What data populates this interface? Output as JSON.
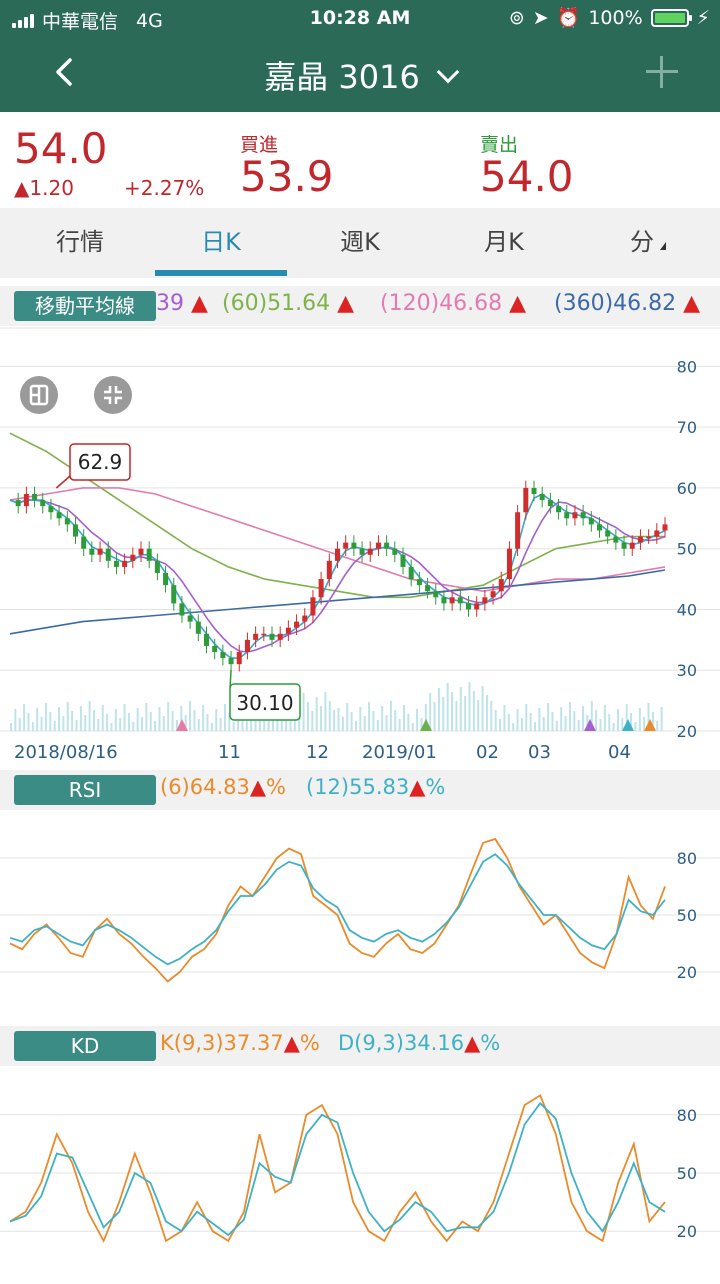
{
  "status": {
    "carrier": "中華電信",
    "network": "4G",
    "time": "10:28 AM",
    "battery": "100%"
  },
  "header": {
    "title": "嘉晶 3016"
  },
  "quote": {
    "price": "54.0",
    "change": "▲1.20",
    "change_pct": "+2.27%",
    "bid_label": "買進",
    "bid": "53.9",
    "ask_label": "賣出",
    "ask": "54.0"
  },
  "tabs": [
    "行情",
    "日K",
    "週K",
    "月K",
    "分"
  ],
  "ma_bar": {
    "label": "移動平均線",
    "items": [
      "39",
      "(60)51.64",
      "(120)46.68",
      "(360)46.82"
    ]
  },
  "rsi_bar": {
    "label": "RSI",
    "items": [
      "(6)64.83",
      "(12)55.83"
    ],
    "unit": "%"
  },
  "kd_bar": {
    "label": "KD",
    "items": [
      "K(9,3)37.37",
      "D(9,3)34.16"
    ],
    "unit": "%"
  },
  "colors": {
    "up": "#d22d2d",
    "down": "#2e9b3a",
    "ma5": "#3aa6c9",
    "ma20": "#a45fd0",
    "ma60": "#7fb24a",
    "ma120": "#e27bb0",
    "ma360": "#3c6aa8",
    "orange": "#e98b2a",
    "teal": "#3fb1c6"
  },
  "chart_data": [
    {
      "type": "candlestick",
      "y_ticks": [
        20,
        30,
        40,
        50,
        60,
        70,
        80
      ],
      "ylim": [
        20,
        85
      ],
      "x_labels": [
        "2018/08/16",
        "11",
        "12",
        "2019/01",
        "02",
        "03",
        "04"
      ],
      "annotations": [
        {
          "label": "62.9",
          "kind": "high"
        },
        {
          "label": "30.10",
          "kind": "low"
        }
      ],
      "close_path": [
        58,
        57,
        59,
        58,
        57,
        56,
        55,
        54,
        52,
        50,
        49,
        50,
        48,
        47,
        48,
        49,
        50,
        48,
        46,
        44,
        41,
        39,
        38,
        36,
        34,
        33,
        32,
        31,
        33,
        35,
        36,
        36,
        35,
        36,
        37,
        38,
        39,
        42,
        45,
        48,
        50,
        51,
        50,
        49,
        50,
        51,
        50,
        49,
        47,
        45,
        44,
        43,
        42,
        41,
        42,
        41,
        40,
        41,
        42,
        43,
        45,
        50,
        56,
        60,
        59,
        58,
        57,
        56,
        55,
        56,
        55,
        54,
        53,
        52,
        51,
        50,
        51,
        52,
        52,
        53,
        54
      ],
      "ma": [
        {
          "name": "(60)",
          "values": [
            69,
            66,
            62,
            58,
            54,
            50,
            47,
            45,
            44,
            43,
            42,
            42,
            43,
            44,
            47,
            50,
            51,
            52,
            52
          ]
        },
        {
          "name": "(120)",
          "values": [
            58,
            59,
            60,
            60,
            59,
            57,
            55,
            53,
            51,
            49,
            47,
            45,
            44,
            43,
            44,
            45,
            45,
            46,
            47
          ]
        },
        {
          "name": "(360)",
          "values": [
            36,
            37,
            38,
            38.5,
            39,
            39.5,
            40,
            40.5,
            41,
            41.5,
            42,
            42.5,
            43,
            43.5,
            44,
            44.5,
            45,
            45.5,
            46.5
          ]
        }
      ]
    },
    {
      "type": "line",
      "y_ticks": [
        20,
        50,
        80
      ],
      "ylim": [
        0,
        100
      ],
      "series": [
        {
          "name": "(6)",
          "values": [
            35,
            32,
            40,
            45,
            38,
            30,
            28,
            42,
            48,
            40,
            35,
            28,
            22,
            15,
            20,
            28,
            32,
            40,
            55,
            65,
            60,
            70,
            80,
            85,
            82,
            60,
            55,
            50,
            35,
            30,
            28,
            35,
            40,
            32,
            30,
            35,
            45,
            55,
            72,
            88,
            90,
            80,
            65,
            55,
            45,
            50,
            40,
            30,
            25,
            22,
            40,
            70,
            55,
            48,
            65
          ]
        },
        {
          "name": "(12)",
          "values": [
            38,
            36,
            42,
            44,
            40,
            36,
            34,
            42,
            45,
            42,
            38,
            33,
            28,
            24,
            27,
            32,
            36,
            42,
            52,
            60,
            60,
            66,
            74,
            78,
            76,
            64,
            58,
            54,
            42,
            38,
            36,
            40,
            42,
            38,
            36,
            40,
            46,
            54,
            66,
            78,
            82,
            76,
            66,
            58,
            50,
            50,
            44,
            38,
            34,
            32,
            40,
            58,
            52,
            50,
            58
          ]
        }
      ]
    },
    {
      "type": "line",
      "y_ticks": [
        20,
        50,
        80
      ],
      "ylim": [
        0,
        100
      ],
      "series": [
        {
          "name": "K(9,3)",
          "values": [
            25,
            30,
            45,
            70,
            55,
            30,
            15,
            35,
            60,
            40,
            15,
            20,
            35,
            20,
            15,
            30,
            70,
            40,
            45,
            80,
            85,
            70,
            35,
            20,
            15,
            30,
            40,
            25,
            15,
            25,
            20,
            35,
            60,
            85,
            90,
            70,
            35,
            20,
            15,
            45,
            65,
            25,
            35
          ]
        },
        {
          "name": "D(9,3)",
          "values": [
            25,
            28,
            38,
            60,
            58,
            40,
            22,
            30,
            50,
            45,
            25,
            20,
            30,
            24,
            18,
            26,
            55,
            48,
            45,
            70,
            80,
            76,
            50,
            30,
            20,
            26,
            35,
            30,
            20,
            22,
            22,
            30,
            50,
            75,
            86,
            78,
            50,
            30,
            20,
            35,
            55,
            35,
            30
          ]
        }
      ]
    }
  ]
}
